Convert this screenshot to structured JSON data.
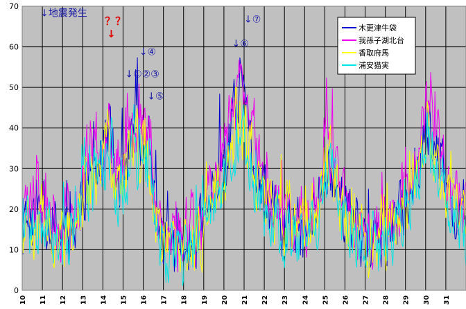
{
  "chart_data": {
    "type": "line",
    "ylim": [
      0,
      70
    ],
    "yticks": [
      0,
      10,
      20,
      30,
      40,
      50,
      60,
      70
    ],
    "xlim": [
      10,
      32
    ],
    "xticks": [
      "10",
      "11",
      "12",
      "13",
      "14",
      "15",
      "16",
      "17",
      "18",
      "19",
      "20",
      "21",
      "22",
      "23",
      "24",
      "25",
      "26",
      "27",
      "28",
      "29",
      "30",
      "31"
    ],
    "grid": true,
    "legend_position": "top-right",
    "plot_background": "#c0c0c0",
    "series": [
      {
        "name": "木更津牛袋",
        "color": "#0000cc",
        "seed": 11,
        "amp": 1.0
      },
      {
        "name": "我孫子湖北台",
        "color": "#ee00ee",
        "seed": 23,
        "amp": 1.12
      },
      {
        "name": "香取府馬",
        "color": "#ffff00",
        "seed": 37,
        "amp": 0.93
      },
      {
        "name": "浦安猫実",
        "color": "#00e5e5",
        "seed": 53,
        "amp": 0.88
      }
    ],
    "envelope": {
      "x": [
        10.0,
        10.5,
        11.0,
        11.5,
        12.0,
        12.5,
        13.0,
        13.5,
        14.0,
        14.3,
        14.6,
        15.0,
        15.5,
        15.9,
        16.3,
        16.7,
        17.0,
        17.5,
        18.0,
        18.5,
        19.0,
        19.5,
        20.0,
        20.4,
        20.8,
        21.2,
        21.5,
        22.0,
        22.5,
        23.0,
        23.5,
        24.0,
        24.5,
        25.0,
        25.5,
        26.0,
        26.5,
        27.0,
        27.5,
        28.0,
        28.5,
        29.0,
        29.5,
        30.0,
        30.5,
        31.0,
        31.5,
        32.0
      ],
      "y": [
        16,
        18,
        20,
        16,
        14,
        14,
        24,
        28,
        32,
        40,
        26,
        30,
        38,
        36,
        34,
        14,
        12,
        10,
        10,
        12,
        16,
        26,
        30,
        40,
        44,
        38,
        30,
        22,
        18,
        16,
        14,
        14,
        18,
        32,
        28,
        18,
        14,
        12,
        12,
        14,
        16,
        22,
        30,
        40,
        34,
        26,
        20,
        16
      ]
    },
    "annotations": [
      {
        "text": "↓地震発生",
        "color": "blue",
        "x": 10.9,
        "y": 67.5
      },
      {
        "text": "？？",
        "color": "red",
        "x": 14.1,
        "y": 65.5
      },
      {
        "text": "↓",
        "color": "red",
        "x": 14.2,
        "y": 62.3
      },
      {
        "text": "↓④",
        "color": "blue",
        "x": 15.8,
        "y": 58.0
      },
      {
        "text": "↓①②③",
        "color": "blue",
        "x": 15.1,
        "y": 52.5
      },
      {
        "text": "↓⑤",
        "color": "blue",
        "x": 16.2,
        "y": 47.0
      },
      {
        "text": "↓⑥",
        "color": "blue",
        "x": 20.4,
        "y": 60.0
      },
      {
        "text": "↓⑦",
        "color": "blue",
        "x": 21.0,
        "y": 66.0
      }
    ]
  }
}
